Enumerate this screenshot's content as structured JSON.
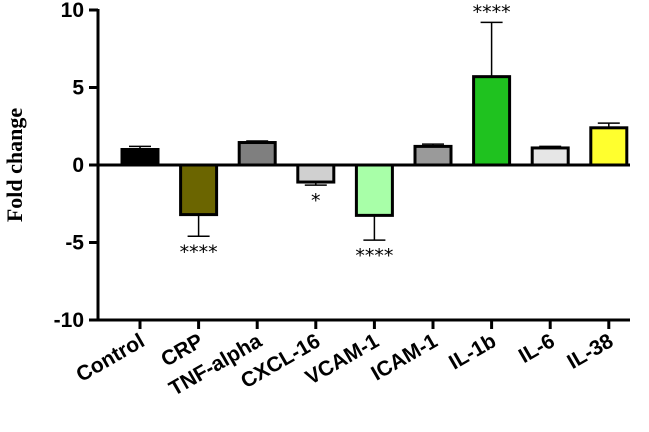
{
  "chart_data": {
    "type": "bar",
    "title": "",
    "xlabel": "",
    "ylabel": "Fold change",
    "ylim": [
      -10,
      10
    ],
    "yticks": [
      "10",
      "5",
      "0",
      "-5",
      "-10"
    ],
    "yticks_values": [
      10,
      5,
      0,
      -5,
      -10
    ],
    "categories": [
      "Control",
      "CRP",
      "TNF-alpha",
      "CXCL-16",
      "VCAM-1",
      "ICAM-1",
      "IL-1b",
      "IL-6",
      "IL-38"
    ],
    "values": [
      1.0,
      -3.2,
      1.45,
      -1.1,
      -3.25,
      1.2,
      5.7,
      1.1,
      2.4
    ],
    "errors": [
      0.2,
      1.4,
      0.1,
      0.2,
      1.6,
      0.15,
      3.5,
      0.1,
      0.3
    ],
    "colors": [
      "#000000",
      "#6b6500",
      "#7f7f7f",
      "#d0d0d0",
      "#a8ffa8",
      "#9a9a9a",
      "#1fc21f",
      "#e6e6e6",
      "#ffff2e"
    ],
    "significance": [
      "",
      "****",
      "",
      "*",
      "****",
      "",
      "****",
      "",
      ""
    ],
    "grid": false,
    "legend": "none"
  }
}
